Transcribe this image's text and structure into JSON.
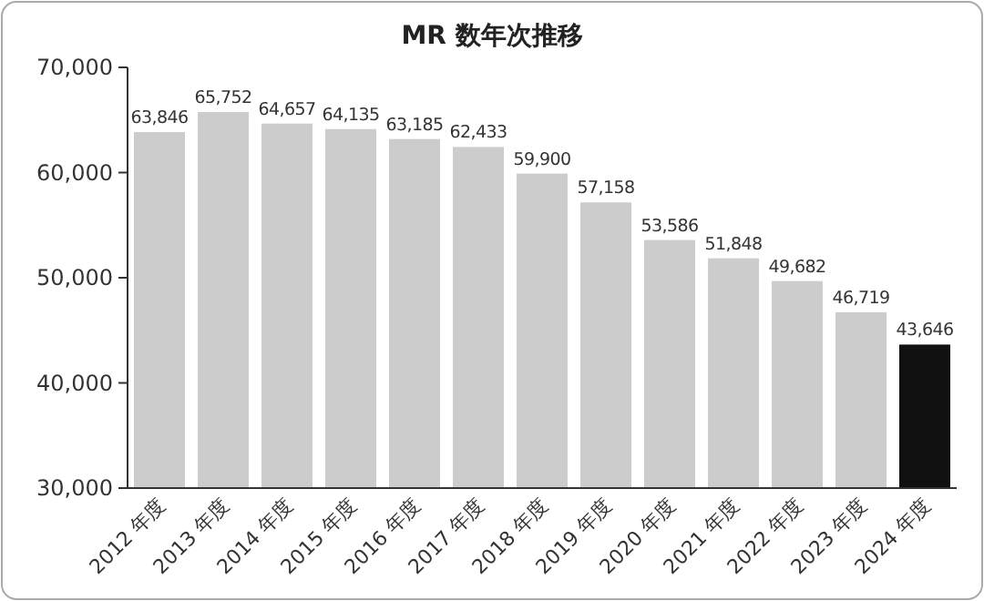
{
  "chart_data": {
    "type": "bar",
    "title": "MR 数年次推移",
    "categories": [
      "2012 年度",
      "2013 年度",
      "2014 年度",
      "2015 年度",
      "2016 年度",
      "2017 年度",
      "2018 年度",
      "2019 年度",
      "2020 年度",
      "2021 年度",
      "2022 年度",
      "2023 年度",
      "2024 年度"
    ],
    "values": [
      63846,
      65752,
      64657,
      64135,
      63185,
      62433,
      59900,
      57158,
      53586,
      51848,
      49682,
      46719,
      43646
    ],
    "value_labels": [
      "63,846",
      "65,752",
      "64,657",
      "64,135",
      "63,185",
      "62,433",
      "59,900",
      "57,158",
      "53,586",
      "51,848",
      "49,682",
      "46,719",
      "43,646"
    ],
    "colors": [
      "#cccccc",
      "#cccccc",
      "#cccccc",
      "#cccccc",
      "#cccccc",
      "#cccccc",
      "#cccccc",
      "#cccccc",
      "#cccccc",
      "#cccccc",
      "#cccccc",
      "#cccccc",
      "#111111"
    ],
    "ylim": [
      30000,
      70000
    ],
    "yticks": [
      {
        "value": 30000,
        "label": "30,000"
      },
      {
        "value": 40000,
        "label": "40,000"
      },
      {
        "value": 50000,
        "label": "50,000"
      },
      {
        "value": 60000,
        "label": "60,000"
      },
      {
        "value": 70000,
        "label": "70,000"
      }
    ],
    "grid": false
  }
}
